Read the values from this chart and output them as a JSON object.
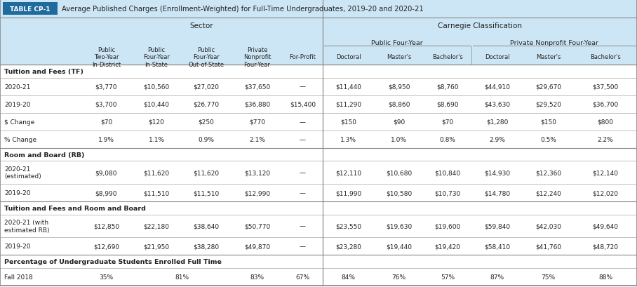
{
  "title_box": "TABLE CP-1",
  "title_text": "Average Published Charges (Enrollment-Weighted) for Full-Time Undergraduates, 2019-20 and 2020-21",
  "header_bg": "#cde6f5",
  "sector_label": "Sector",
  "carnegie_label": "Carnegie Classification",
  "pub_four_year_label": "Public Four-Year",
  "priv_nonprofit_label": "Private Nonprofit Four-Year",
  "col_headers": [
    "Public\nTwo-Year\nIn-District",
    "Public\nFour-Year\nIn-State",
    "Public\nFour-Year\nOut-of-State",
    "Private\nNonprofit\nFour-Year",
    "For-Profit",
    "Doctoral",
    "Master's",
    "Bachelor's",
    "Doctoral",
    "Master's",
    "Bachelor's"
  ],
  "rows": [
    {
      "section": "Tuition and Fees (TF)",
      "label": "2020-21",
      "values": [
        "$3,770",
        "$10,560",
        "$27,020",
        "$37,650",
        "—",
        "$11,440",
        "$8,950",
        "$8,760",
        "$44,910",
        "$29,670",
        "$37,500"
      ],
      "tall": false
    },
    {
      "section": "Tuition and Fees (TF)",
      "label": "2019-20",
      "values": [
        "$3,700",
        "$10,440",
        "$26,770",
        "$36,880",
        "$15,400",
        "$11,290",
        "$8,860",
        "$8,690",
        "$43,630",
        "$29,520",
        "$36,700"
      ],
      "tall": false
    },
    {
      "section": "Tuition and Fees (TF)",
      "label": "$ Change",
      "values": [
        "$70",
        "$120",
        "$250",
        "$770",
        "—",
        "$150",
        "$90",
        "$70",
        "$1,280",
        "$150",
        "$800"
      ],
      "tall": false
    },
    {
      "section": "Tuition and Fees (TF)",
      "label": "% Change",
      "values": [
        "1.9%",
        "1.1%",
        "0.9%",
        "2.1%",
        "—",
        "1.3%",
        "1.0%",
        "0.8%",
        "2.9%",
        "0.5%",
        "2.2%"
      ],
      "tall": false
    },
    {
      "section": "Room and Board (RB)",
      "label": "2020-21\n(estimated)",
      "values": [
        "$9,080",
        "$11,620",
        "$11,620",
        "$13,120",
        "—",
        "$12,110",
        "$10,680",
        "$10,840",
        "$14,930",
        "$12,360",
        "$12,140"
      ],
      "tall": true
    },
    {
      "section": "Room and Board (RB)",
      "label": "2019-20",
      "values": [
        "$8,990",
        "$11,510",
        "$11,510",
        "$12,990",
        "—",
        "$11,990",
        "$10,580",
        "$10,730",
        "$14,780",
        "$12,240",
        "$12,020"
      ],
      "tall": false
    },
    {
      "section": "Tuition and Fees and Room and Board",
      "label": "2020-21 (with\nestimated RB)",
      "values": [
        "$12,850",
        "$22,180",
        "$38,640",
        "$50,770",
        "—",
        "$23,550",
        "$19,630",
        "$19,600",
        "$59,840",
        "$42,030",
        "$49,640"
      ],
      "tall": true
    },
    {
      "section": "Tuition and Fees and Room and Board",
      "label": "2019-20",
      "values": [
        "$12,690",
        "$21,950",
        "$38,280",
        "$49,870",
        "—",
        "$23,280",
        "$19,440",
        "$19,420",
        "$58,410",
        "$41,760",
        "$48,720"
      ],
      "tall": false
    },
    {
      "section": "Percentage of Undergraduate Students Enrolled Full Time",
      "label": "Fall 2018",
      "values": [
        "35%",
        "81%",
        null,
        "83%",
        "67%",
        "84%",
        "76%",
        "57%",
        "87%",
        "75%",
        "88%"
      ],
      "tall": false,
      "merged": [
        [
          1,
          2
        ]
      ]
    }
  ],
  "bg_white": "#ffffff",
  "bg_header": "#cde6f5",
  "text_dark": "#222222",
  "border_dark": "#888888",
  "border_light": "#bbbbbb",
  "title_box_bg": "#1f6b9e",
  "title_box_text": "#ffffff",
  "section_bold": true
}
